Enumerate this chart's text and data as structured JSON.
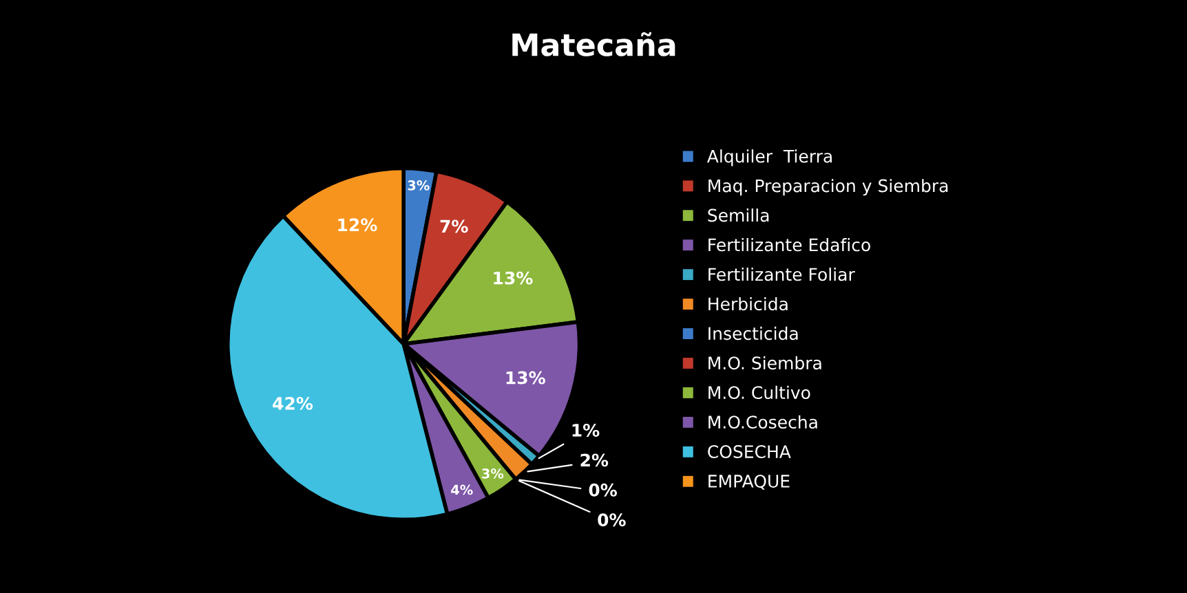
{
  "chart_data": {
    "type": "pie",
    "title": "Matecaña",
    "categories": [
      "Alquiler  Tierra",
      "Maq. Preparacion y Siembra",
      "Semilla",
      "Fertilizante Edafico",
      "Fertilizante Foliar",
      "Herbicida",
      "Insecticida",
      "M.O. Siembra",
      "M.O. Cultivo",
      "M.O.Cosecha",
      "COSECHA",
      "EMPAQUE"
    ],
    "values": [
      3,
      7,
      13,
      13,
      1,
      2,
      0,
      0,
      3,
      4,
      42,
      12
    ],
    "value_labels": [
      "3%",
      "7%",
      "13%",
      "13%",
      "1%",
      "2%",
      "0%",
      "0%",
      "3%",
      "4%",
      "42%",
      "12%"
    ],
    "colors": [
      "#3d7cc9",
      "#c0392b",
      "#8db83c",
      "#7e57a8",
      "#3aa9c4",
      "#f08a24",
      "#3d7cc9",
      "#c0392b",
      "#8db83c",
      "#7e57a8",
      "#3fc0e0",
      "#f7941d"
    ],
    "legend": "right"
  }
}
